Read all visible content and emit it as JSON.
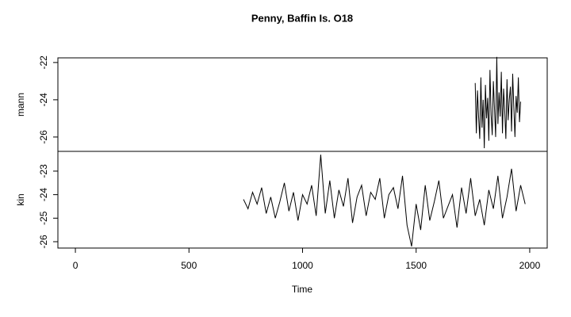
{
  "chart_data": {
    "type": "line",
    "title": "Penny, Baffin Is. O18",
    "xlabel": "Time",
    "xlim": [
      -77,
      2077
    ],
    "xticks": [
      0,
      500,
      1000,
      1500,
      2000
    ],
    "color": "#000000",
    "panels": [
      {
        "ylabel": "mann",
        "ylim": [
          -26.77,
          -21.75
        ],
        "yticks": [
          -26,
          -24,
          -22
        ],
        "x": [
          1760,
          1765,
          1770,
          1775,
          1780,
          1785,
          1790,
          1795,
          1800,
          1805,
          1810,
          1815,
          1820,
          1825,
          1830,
          1835,
          1840,
          1845,
          1850,
          1855,
          1860,
          1865,
          1870,
          1875,
          1880,
          1885,
          1890,
          1895,
          1900,
          1905,
          1910,
          1915,
          1920,
          1925,
          1930,
          1935,
          1940,
          1945,
          1950,
          1955,
          1960
        ],
        "values": [
          -23.1,
          -25.8,
          -23.5,
          -24.9,
          -26.1,
          -22.8,
          -25.5,
          -24.0,
          -26.6,
          -23.2,
          -25.0,
          -23.9,
          -26.2,
          -22.4,
          -24.8,
          -25.9,
          -23.0,
          -24.5,
          -26.0,
          -21.7,
          -25.3,
          -23.6,
          -24.9,
          -22.5,
          -25.8,
          -23.4,
          -24.6,
          -26.1,
          -22.9,
          -25.1,
          -24.0,
          -23.3,
          -25.7,
          -22.6,
          -24.4,
          -26.0,
          -23.8,
          -24.7,
          -22.8,
          -25.2,
          -24.1
        ]
      },
      {
        "ylabel": "kin",
        "ylim": [
          -26.27,
          -22.16
        ],
        "yticks": [
          -26,
          -25,
          -24,
          -23
        ],
        "x": [
          740,
          760,
          780,
          800,
          820,
          840,
          860,
          880,
          900,
          920,
          940,
          960,
          980,
          1000,
          1020,
          1040,
          1060,
          1080,
          1100,
          1120,
          1140,
          1160,
          1180,
          1200,
          1220,
          1240,
          1260,
          1280,
          1300,
          1320,
          1340,
          1360,
          1380,
          1400,
          1420,
          1440,
          1460,
          1480,
          1500,
          1520,
          1540,
          1560,
          1580,
          1600,
          1620,
          1640,
          1660,
          1680,
          1700,
          1720,
          1740,
          1760,
          1780,
          1800,
          1820,
          1840,
          1860,
          1880,
          1900,
          1920,
          1940,
          1960,
          1980
        ],
        "values": [
          -24.2,
          -24.6,
          -23.9,
          -24.4,
          -23.7,
          -24.8,
          -24.1,
          -25.0,
          -24.3,
          -23.5,
          -24.7,
          -23.9,
          -25.1,
          -24.0,
          -24.4,
          -23.6,
          -24.9,
          -22.3,
          -24.8,
          -23.4,
          -25.0,
          -23.8,
          -24.5,
          -23.3,
          -25.2,
          -24.1,
          -23.6,
          -24.9,
          -23.9,
          -24.2,
          -23.3,
          -25.0,
          -24.0,
          -23.7,
          -24.6,
          -23.2,
          -25.3,
          -26.2,
          -24.4,
          -25.5,
          -23.6,
          -25.1,
          -24.3,
          -23.4,
          -25.0,
          -24.5,
          -24.0,
          -25.4,
          -23.7,
          -24.8,
          -23.3,
          -24.9,
          -24.2,
          -25.3,
          -23.8,
          -24.6,
          -23.2,
          -25.0,
          -24.1,
          -22.9,
          -24.7,
          -23.6,
          -24.4
        ]
      }
    ]
  }
}
